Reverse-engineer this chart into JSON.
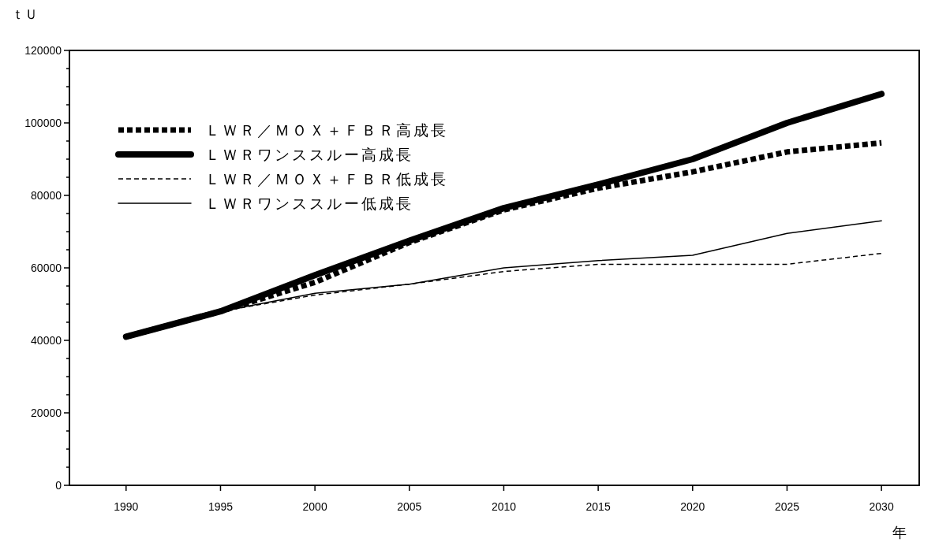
{
  "chart_data": {
    "type": "line",
    "ylabel": "ｔＵ",
    "xlabel": "年",
    "x": [
      1990,
      1995,
      2000,
      2005,
      2010,
      2015,
      2020,
      2025,
      2030
    ],
    "series": [
      {
        "name": "ＬＷＲ／ＭＯＸ＋ＦＢＲ高成長",
        "color": "#000000",
        "line_style": "dotted",
        "values": [
          41000,
          48000,
          56000,
          67000,
          76000,
          82000,
          86500,
          92000,
          94500
        ]
      },
      {
        "name": "ＬＷＲワンススルー高成長",
        "color": "#000000",
        "line_style": "solid",
        "values": [
          41000,
          48000,
          58000,
          67500,
          76500,
          83000,
          90000,
          100000,
          108000
        ]
      },
      {
        "name": "ＬＷＲ／ＭＯＸ＋ＦＢＲ低成長",
        "color": "#000000",
        "line_style": "dashed",
        "values": [
          41000,
          48000,
          52500,
          55500,
          59000,
          61000,
          61000,
          61000,
          64000
        ]
      },
      {
        "name": "ＬＷＲワンススルー低成長",
        "color": "#000000",
        "line_style": "solid",
        "values": [
          41000,
          48000,
          53000,
          55500,
          60000,
          62000,
          63500,
          69500,
          73000
        ]
      }
    ],
    "xlim": [
      1987,
      2032
    ],
    "xticks": [
      1990,
      1995,
      2000,
      2005,
      2010,
      2015,
      2020,
      2025,
      2030
    ],
    "ylim": [
      0,
      120000
    ],
    "yticks": [
      0,
      {
        "value": 5000,
        "label": null
      },
      {
        "value": 10000,
        "label": null
      },
      {
        "value": 15000,
        "label": null
      },
      20000,
      {
        "value": 25000,
        "label": null
      },
      {
        "value": 30000,
        "label": null
      },
      {
        "value": 35000,
        "label": null
      },
      40000,
      {
        "value": 45000,
        "label": null
      },
      {
        "value": 50000,
        "label": null
      },
      {
        "value": 55000,
        "label": null
      },
      60000,
      {
        "value": 65000,
        "label": null
      },
      {
        "value": 70000,
        "label": null
      },
      {
        "value": 75000,
        "label": null
      },
      80000,
      {
        "value": 85000,
        "label": null
      },
      {
        "value": 90000,
        "label": null
      },
      {
        "value": 95000,
        "label": null
      },
      100000,
      {
        "value": 105000,
        "label": null
      },
      {
        "value": 110000,
        "label": null
      },
      {
        "value": 115000,
        "label": null
      },
      120000
    ],
    "grid": false,
    "legend": "top left"
  }
}
